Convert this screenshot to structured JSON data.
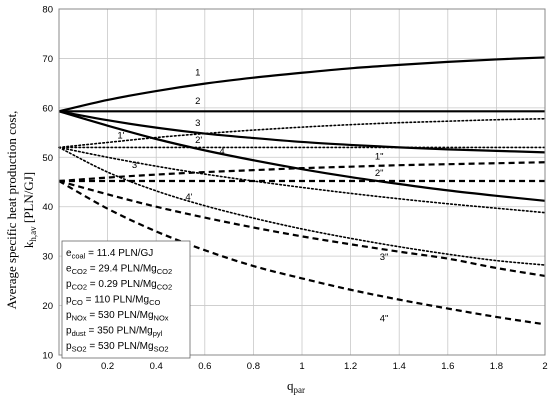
{
  "chart_data": {
    "type": "line",
    "xlabel": "q",
    "xlabel_sub": "par",
    "ylabel_line1": "Average specific heat production cost,",
    "ylabel_line2": "k",
    "ylabel_line2_sub": "h,av",
    "ylabel_line2_rest": " [PLN/GJ]",
    "xlim": [
      0,
      2
    ],
    "ylim": [
      10,
      80
    ],
    "x_ticks": [
      0,
      0.2,
      0.4,
      0.6,
      0.8,
      1,
      1.2,
      1.4,
      1.6,
      1.8,
      2
    ],
    "x_tick_labels": [
      "0",
      "0.2",
      "0.4",
      "0.6",
      "0.8",
      "1",
      "1.2",
      "1.4",
      "1.6",
      "1.8",
      "2"
    ],
    "y_ticks": [
      10,
      20,
      30,
      40,
      50,
      60,
      70,
      80
    ],
    "y_tick_labels": [
      "10",
      "20",
      "30",
      "40",
      "50",
      "60",
      "70",
      "80"
    ],
    "grid": true,
    "x": [
      0,
      0.2,
      0.4,
      0.6,
      0.8,
      1.0,
      1.2,
      1.4,
      1.6,
      1.8,
      2.0
    ],
    "series": [
      {
        "name": "1",
        "style": "solid",
        "values": [
          59.3,
          61.6,
          63.4,
          64.9,
          66.1,
          67.1,
          68.0,
          68.7,
          69.3,
          69.8,
          70.2
        ]
      },
      {
        "name": "2",
        "style": "solid",
        "values": [
          59.3,
          59.3,
          59.3,
          59.3,
          59.3,
          59.3,
          59.3,
          59.3,
          59.3,
          59.3,
          59.3
        ]
      },
      {
        "name": "3",
        "style": "solid",
        "values": [
          59.3,
          57.5,
          56.0,
          54.8,
          53.9,
          53.1,
          52.5,
          52.0,
          51.6,
          51.3,
          51.0
        ]
      },
      {
        "name": "4",
        "style": "solid",
        "values": [
          59.3,
          56.4,
          53.7,
          51.4,
          49.4,
          47.6,
          46.0,
          44.6,
          43.3,
          42.2,
          41.2
        ]
      },
      {
        "name": "1'",
        "style": "dotted",
        "values": [
          52.0,
          53.0,
          54.0,
          54.8,
          55.5,
          56.1,
          56.6,
          57.0,
          57.3,
          57.6,
          57.8
        ]
      },
      {
        "name": "2'",
        "style": "dotted",
        "values": [
          52.0,
          52.0,
          52.0,
          52.0,
          52.0,
          52.0,
          52.0,
          52.0,
          52.0,
          52.0,
          52.0
        ]
      },
      {
        "name": "3'",
        "style": "dotted",
        "values": [
          52.0,
          50.0,
          48.2,
          46.6,
          45.2,
          43.9,
          42.7,
          41.6,
          40.6,
          39.7,
          38.8
        ]
      },
      {
        "name": "4'",
        "style": "dotted",
        "values": [
          52.0,
          47.0,
          43.2,
          40.2,
          37.7,
          35.5,
          33.6,
          31.9,
          30.4,
          29.1,
          28.2
        ]
      },
      {
        "name": "1\"",
        "style": "dashed",
        "values": [
          45.2,
          45.9,
          46.5,
          47.0,
          47.4,
          47.8,
          48.1,
          48.4,
          48.6,
          48.8,
          49.0
        ]
      },
      {
        "name": "2\"",
        "style": "dashed",
        "values": [
          45.2,
          45.2,
          45.2,
          45.2,
          45.2,
          45.2,
          45.2,
          45.2,
          45.2,
          45.2,
          45.2
        ]
      },
      {
        "name": "3\"",
        "style": "dashed",
        "values": [
          45.2,
          42.5,
          40.0,
          37.8,
          35.8,
          34.0,
          32.4,
          30.9,
          29.5,
          27.6,
          26.0
        ]
      },
      {
        "name": "4\"",
        "style": "dashed",
        "values": [
          45.2,
          39.6,
          35.0,
          31.2,
          28.0,
          25.5,
          23.2,
          21.2,
          19.4,
          17.7,
          16.2
        ]
      }
    ],
    "curve_labels": [
      {
        "text": "1",
        "x": 0.56,
        "y": 66.5
      },
      {
        "text": "2",
        "x": 0.56,
        "y": 60.8
      },
      {
        "text": "3",
        "x": 0.56,
        "y": 56.3
      },
      {
        "text": "4",
        "x": 0.66,
        "y": 50.6
      },
      {
        "text": "1'",
        "x": 0.24,
        "y": 53.8
      },
      {
        "text": "2'",
        "x": 0.56,
        "y": 52.9
      },
      {
        "text": "3'",
        "x": 0.3,
        "y": 47.8
      },
      {
        "text": "4'",
        "x": 0.52,
        "y": 41.4
      },
      {
        "text": "1\"",
        "x": 1.3,
        "y": 49.6
      },
      {
        "text": "2\"",
        "x": 1.3,
        "y": 46.2
      },
      {
        "text": "3\"",
        "x": 1.32,
        "y": 29.2
      },
      {
        "text": "4\"",
        "x": 1.32,
        "y": 16.8
      }
    ],
    "legend_placement": "bottom-left",
    "annotation_lines": [
      {
        "label": "e",
        "sub": "coal",
        "value": " = 11.4 PLN/GJ",
        "unit_sub": ""
      },
      {
        "label": "e",
        "sub": "CO2",
        "value": " = 29.4 PLN/Mg",
        "unit_sub": "CO2"
      },
      {
        "label": "p",
        "sub": "CO2",
        "value": " = 0.29 PLN/Mg",
        "unit_sub": "CO2"
      },
      {
        "label": "p",
        "sub": "CO",
        "value": " = 110 PLN/Mg",
        "unit_sub": "CO"
      },
      {
        "label": "p",
        "sub": "NOx",
        "value": " = 530 PLN/Mg",
        "unit_sub": "NOx"
      },
      {
        "label": "p",
        "sub": "dust",
        "value": " = 350 PLN/Mg",
        "unit_sub": "pyl"
      },
      {
        "label": "p",
        "sub": "SO2",
        "value": " = 530 PLN/Mg",
        "unit_sub": "SO2"
      }
    ]
  }
}
